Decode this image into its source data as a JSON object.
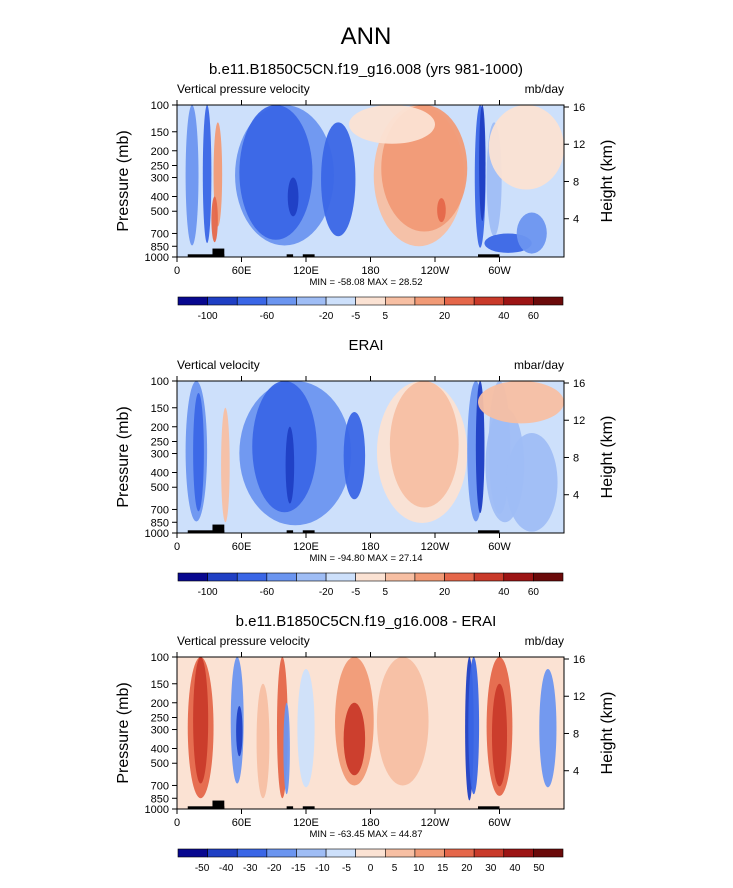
{
  "figure": {
    "title": "ANN"
  },
  "colors": {
    "palette": [
      "#08088f",
      "#1f3fc4",
      "#3a66e6",
      "#6b95f0",
      "#9fbdf5",
      "#cde0fb",
      "#fbe2d3",
      "#f7bfa3",
      "#f19a76",
      "#e5674a",
      "#c93a2a",
      "#9c1414",
      "#6b0a0a"
    ]
  },
  "chart_data": [
    {
      "type": "heatmap",
      "title": "b.e11.B1850C5CN.f19_g16.008 (yrs 981-1000)",
      "left_label": "Vertical pressure velocity",
      "right_label": "mb/day",
      "ylabel": "Pressure (mb)",
      "ylabel_right": "Height (km)",
      "x_ticks": [
        "0",
        "60E",
        "120E",
        "180",
        "120W",
        "60W"
      ],
      "x_tick_values": [
        0,
        60,
        120,
        180,
        240,
        300
      ],
      "xlim": [
        0,
        360
      ],
      "y_ticks": [
        "100",
        "150",
        "200",
        "250",
        "300",
        "400",
        "500",
        "700",
        "850",
        "1000"
      ],
      "y_tick_values": [
        100,
        150,
        200,
        250,
        300,
        400,
        500,
        700,
        850,
        1000
      ],
      "ylim": [
        1000,
        100
      ],
      "height_ticks": [
        "4",
        "8",
        "12",
        "16"
      ],
      "height_tick_values": [
        4,
        8,
        12,
        16
      ],
      "stats": "MIN = -58.08  MAX = 28.52",
      "colorbar_labels": [
        "-100",
        "-60",
        "-20",
        "-5",
        "5",
        "20",
        "40",
        "60"
      ],
      "levels": [
        -100,
        -80,
        -60,
        -40,
        -20,
        -10,
        -5,
        0,
        5,
        10,
        20,
        30,
        40,
        60
      ],
      "background_index": 5,
      "blobs": [
        {
          "lon": 14,
          "p": 420,
          "wl": 6,
          "wp": 420,
          "c": 3
        },
        {
          "lon": 28,
          "p": 430,
          "wl": 4,
          "wp": 380,
          "c": 2
        },
        {
          "lon": 38,
          "p": 380,
          "wl": 4,
          "wp": 250,
          "c": 8
        },
        {
          "lon": 35,
          "p": 600,
          "wl": 3,
          "wp": 200,
          "c": 9
        },
        {
          "lon": 100,
          "p": 420,
          "wl": 46,
          "wp": 420,
          "c": 3
        },
        {
          "lon": 92,
          "p": 430,
          "wl": 34,
          "wp": 340,
          "c": 2
        },
        {
          "lon": 108,
          "p": 420,
          "wl": 5,
          "wp": 120,
          "c": 1
        },
        {
          "lon": 150,
          "p": 430,
          "wl": 16,
          "wp": 300,
          "c": 2
        },
        {
          "lon": 225,
          "p": 420,
          "wl": 42,
          "wp": 430,
          "c": 7
        },
        {
          "lon": 230,
          "p": 380,
          "wl": 40,
          "wp": 300,
          "c": 8
        },
        {
          "lon": 246,
          "p": 500,
          "wl": 4,
          "wp": 90,
          "c": 9
        },
        {
          "lon": 282,
          "p": 470,
          "wl": 5,
          "wp": 400,
          "c": 2
        },
        {
          "lon": 284,
          "p": 330,
          "wl": 3,
          "wp": 250,
          "c": 1
        },
        {
          "lon": 295,
          "p": 430,
          "wl": 7,
          "wp": 300,
          "c": 4
        },
        {
          "lon": 308,
          "p": 820,
          "wl": 22,
          "wp": 120,
          "c": 2
        },
        {
          "lon": 330,
          "p": 730,
          "wl": 14,
          "wp": 220,
          "c": 3
        },
        {
          "lon": 325,
          "p": 220,
          "wl": 35,
          "wp": 140,
          "c": 6
        },
        {
          "lon": 200,
          "p": 130,
          "wl": 40,
          "wp": 50,
          "c": 6
        }
      ]
    },
    {
      "type": "heatmap",
      "title": "ERAI",
      "left_label": "Vertical velocity",
      "right_label": "mbar/day",
      "ylabel": "Pressure (mb)",
      "ylabel_right": "Height (km)",
      "x_ticks": [
        "0",
        "60E",
        "120E",
        "180",
        "120W",
        "60W"
      ],
      "x_tick_values": [
        0,
        60,
        120,
        180,
        240,
        300
      ],
      "xlim": [
        0,
        360
      ],
      "y_ticks": [
        "100",
        "150",
        "200",
        "250",
        "300",
        "400",
        "500",
        "700",
        "850",
        "1000"
      ],
      "y_tick_values": [
        100,
        150,
        200,
        250,
        300,
        400,
        500,
        700,
        850,
        1000
      ],
      "ylim": [
        1000,
        100
      ],
      "height_ticks": [
        "4",
        "8",
        "12",
        "16"
      ],
      "height_tick_values": [
        4,
        8,
        12,
        16
      ],
      "stats": "MIN = -94.80  MAX = 27.14",
      "colorbar_labels": [
        "-100",
        "-60",
        "-20",
        "-5",
        "5",
        "20",
        "40",
        "60"
      ],
      "levels": [
        -100,
        -80,
        -60,
        -40,
        -20,
        -10,
        -5,
        0,
        5,
        10,
        20,
        30,
        40,
        60
      ],
      "background_index": 5,
      "blobs": [
        {
          "lon": 18,
          "p": 420,
          "wl": 10,
          "wp": 420,
          "c": 3
        },
        {
          "lon": 20,
          "p": 420,
          "wl": 5,
          "wp": 300,
          "c": 2
        },
        {
          "lon": 45,
          "p": 500,
          "wl": 4,
          "wp": 350,
          "c": 7
        },
        {
          "lon": 110,
          "p": 430,
          "wl": 52,
          "wp": 460,
          "c": 3
        },
        {
          "lon": 100,
          "p": 400,
          "wl": 30,
          "wp": 330,
          "c": 2
        },
        {
          "lon": 105,
          "p": 420,
          "wl": 4,
          "wp": 220,
          "c": 1
        },
        {
          "lon": 165,
          "p": 380,
          "wl": 10,
          "wp": 220,
          "c": 2
        },
        {
          "lon": 228,
          "p": 430,
          "wl": 42,
          "wp": 430,
          "c": 6
        },
        {
          "lon": 230,
          "p": 380,
          "wl": 32,
          "wp": 300,
          "c": 7
        },
        {
          "lon": 278,
          "p": 420,
          "wl": 8,
          "wp": 420,
          "c": 3
        },
        {
          "lon": 282,
          "p": 420,
          "wl": 4,
          "wp": 320,
          "c": 1
        },
        {
          "lon": 300,
          "p": 420,
          "wl": 10,
          "wp": 330,
          "c": 4
        },
        {
          "lon": 305,
          "p": 500,
          "wl": 18,
          "wp": 350,
          "c": 4
        },
        {
          "lon": 330,
          "p": 600,
          "wl": 24,
          "wp": 380,
          "c": 4
        },
        {
          "lon": 320,
          "p": 140,
          "wl": 40,
          "wp": 50,
          "c": 7
        }
      ]
    },
    {
      "type": "heatmap",
      "title": "b.e11.B1850C5CN.f19_g16.008 - ERAI",
      "left_label": "Vertical pressure velocity",
      "right_label": "mb/day",
      "ylabel": "Pressure (mb)",
      "ylabel_right": "Height (km)",
      "x_ticks": [
        "0",
        "60E",
        "120E",
        "180",
        "120W",
        "60W"
      ],
      "x_tick_values": [
        0,
        60,
        120,
        180,
        240,
        300
      ],
      "xlim": [
        0,
        360
      ],
      "y_ticks": [
        "100",
        "150",
        "200",
        "250",
        "300",
        "400",
        "500",
        "700",
        "850",
        "1000"
      ],
      "y_tick_values": [
        100,
        150,
        200,
        250,
        300,
        400,
        500,
        700,
        850,
        1000
      ],
      "ylim": [
        1000,
        100
      ],
      "height_ticks": [
        "4",
        "8",
        "12",
        "16"
      ],
      "height_tick_values": [
        4,
        8,
        12,
        16
      ],
      "stats": "MIN = -63.45  MAX = 44.87",
      "colorbar_labels": [
        "-50",
        "-40",
        "-30",
        "-20",
        "-15",
        "-10",
        "-5",
        "0",
        "5",
        "10",
        "15",
        "20",
        "30",
        "40",
        "50"
      ],
      "levels": [
        -50,
        -40,
        -30,
        -20,
        -15,
        -10,
        -5,
        0,
        5,
        10,
        15,
        20,
        30,
        40,
        50
      ],
      "background_index": 6,
      "blobs": [
        {
          "lon": 22,
          "p": 400,
          "wl": 12,
          "wp": 450,
          "c": 9
        },
        {
          "lon": 22,
          "p": 380,
          "wl": 7,
          "wp": 300,
          "c": 10
        },
        {
          "lon": 56,
          "p": 380,
          "wl": 6,
          "wp": 300,
          "c": 3
        },
        {
          "lon": 58,
          "p": 330,
          "wl": 3,
          "wp": 120,
          "c": 1
        },
        {
          "lon": 80,
          "p": 500,
          "wl": 6,
          "wp": 350,
          "c": 7
        },
        {
          "lon": 98,
          "p": 400,
          "wl": 5,
          "wp": 450,
          "c": 9
        },
        {
          "lon": 102,
          "p": 500,
          "wl": 3,
          "wp": 300,
          "c": 3
        },
        {
          "lon": 120,
          "p": 420,
          "wl": 8,
          "wp": 300,
          "c": 5
        },
        {
          "lon": 165,
          "p": 380,
          "wl": 18,
          "wp": 320,
          "c": 8
        },
        {
          "lon": 165,
          "p": 400,
          "wl": 10,
          "wp": 200,
          "c": 10
        },
        {
          "lon": 210,
          "p": 400,
          "wl": 24,
          "wp": 300,
          "c": 7
        },
        {
          "lon": 272,
          "p": 450,
          "wl": 4,
          "wp": 430,
          "c": 1
        },
        {
          "lon": 276,
          "p": 420,
          "wl": 5,
          "wp": 380,
          "c": 2
        },
        {
          "lon": 300,
          "p": 420,
          "wl": 12,
          "wp": 400,
          "c": 9
        },
        {
          "lon": 300,
          "p": 430,
          "wl": 7,
          "wp": 280,
          "c": 10
        },
        {
          "lon": 345,
          "p": 420,
          "wl": 8,
          "wp": 300,
          "c": 3
        }
      ]
    }
  ]
}
